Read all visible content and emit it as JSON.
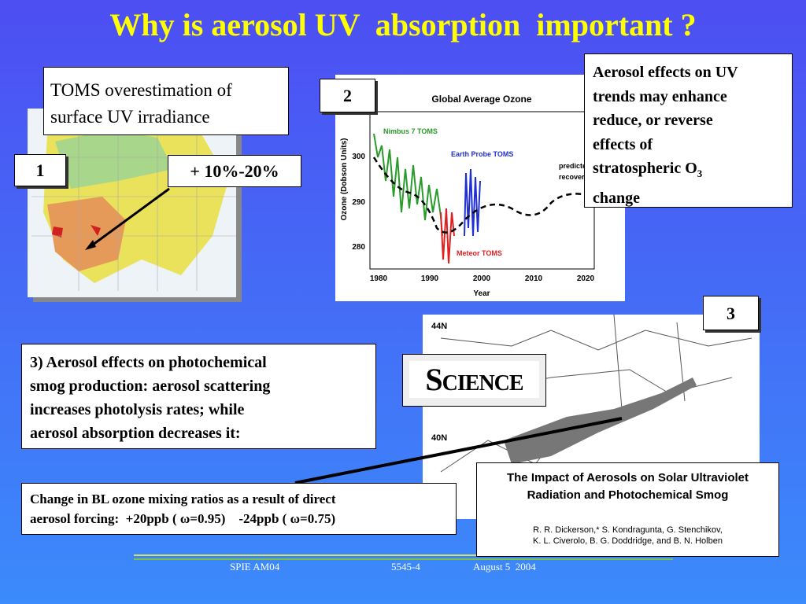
{
  "title": "Why is aerosol UV  absorption  important ?",
  "toms_box": {
    "lines": [
      "TOMS overestimation of",
      "surface UV irradiance"
    ]
  },
  "label_1": "1",
  "label_2": "2",
  "label_3": "3",
  "percent_box": "+ 10%-20%",
  "ozone_chart": {
    "title": "Global Average Ozone",
    "y_label": "Ozone (Dobson Units)",
    "x_label": "Year",
    "x_ticks": [
      "1980",
      "1990",
      "2000",
      "2010",
      "2020"
    ],
    "y_ticks": [
      "300",
      "290",
      "280"
    ],
    "annotations": [
      "Nimbus 7 TOMS",
      "Earth Probe TOMS",
      "Meteor TOMS",
      "predicted",
      "recovery"
    ]
  },
  "trend_box": {
    "lines": [
      "Aerosol effects on UV",
      "trends may enhance",
      "reduce, or reverse",
      "effects of",
      "stratospheric O",
      "change"
    ],
    "subscript": "3"
  },
  "smog_box": {
    "lines": [
      "3) Aerosol effects on photochemical",
      "smog production: aerosol scattering",
      "increases photolysis rates; while",
      "aerosol absorption decreases it:"
    ]
  },
  "science_logo": "Science",
  "map_labels": [
    "44N",
    "40N"
  ],
  "paper": {
    "title_lines": [
      "The Impact of Aerosols on Solar Ultraviolet",
      "Radiation and Photochemical Smog"
    ],
    "author_lines": [
      "R. R. Dickerson,* S. Kondragunta, G. Stenchikov,",
      "K. L. Civerolo, B. G. Doddridge, and B. N. Holben"
    ]
  },
  "ozone_box": {
    "lines": [
      "Change in BL ozone mixing ratios as a result of direct",
      "aerosol forcing:  +20ppb ( ω=0.95)    -24ppb ( ω=0.75)"
    ]
  },
  "footer": [
    "SPIE AM04",
    "5545-4",
    "August 5  2004"
  ]
}
